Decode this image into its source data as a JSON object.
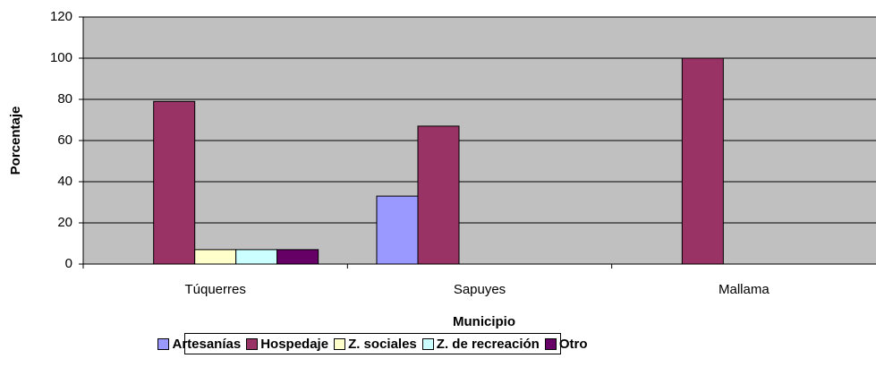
{
  "chart_data": {
    "type": "bar",
    "x_label": "Municipio",
    "y_label": "Porcentaje",
    "categories": [
      "Túquerres",
      "Sapuyes",
      "Mallama"
    ],
    "series": [
      {
        "name": "Artesanías",
        "color": "#9999ff",
        "values": [
          0,
          33,
          0
        ]
      },
      {
        "name": "Hospedaje",
        "color": "#993366",
        "values": [
          79,
          67,
          100
        ]
      },
      {
        "name": "Z. sociales",
        "color": "#ffffcc",
        "values": [
          7,
          0,
          0
        ]
      },
      {
        "name": "Z. de recreación",
        "color": "#ccffff",
        "values": [
          7,
          0,
          0
        ]
      },
      {
        "name": "Otro",
        "color": "#660066",
        "values": [
          7,
          0,
          0
        ]
      }
    ],
    "ylim": [
      0,
      120
    ],
    "yticks": [
      0,
      20,
      40,
      60,
      80,
      100,
      120
    ],
    "grid": true,
    "background": "#c0c0c0",
    "legend": "bottom"
  }
}
